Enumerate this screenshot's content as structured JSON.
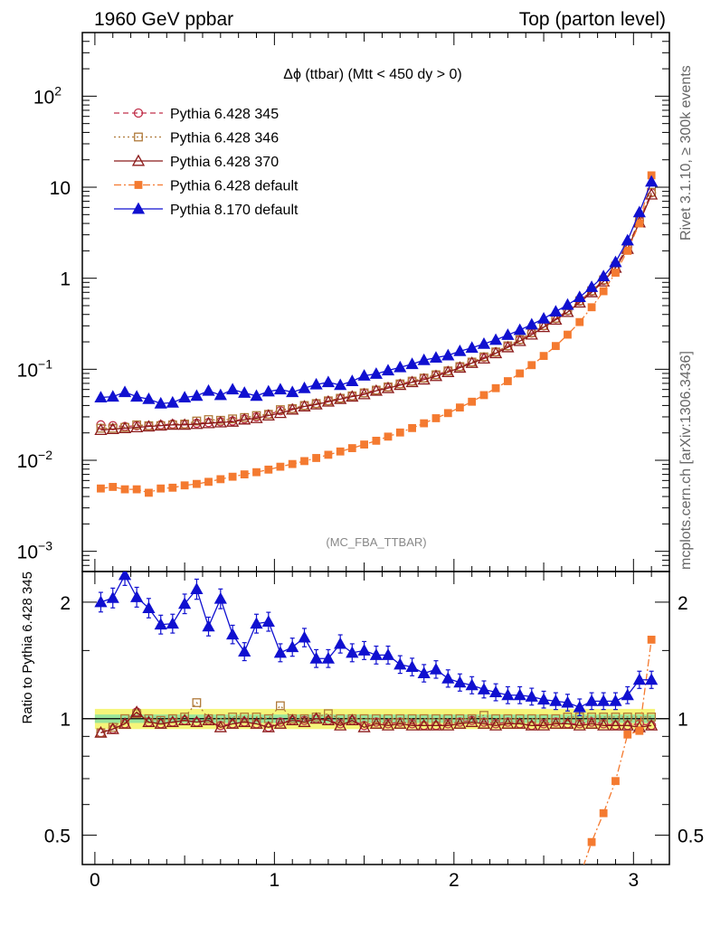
{
  "header": {
    "left": "1960 GeV ppbar",
    "right": "Top (parton level)"
  },
  "side_labels": {
    "rivet": "Rivet 3.1.10, ≥ 300k events",
    "mcplots": "mcplots.cern.ch [arXiv:1306.3436]"
  },
  "chart_data": {
    "type": "line",
    "title": "Δϕ (ttbar) (Mtt < 450 dy > 0)",
    "analysis_label": "(MC_FBA_TTBAR)",
    "upper": {
      "yscale": "log",
      "ylim": [
        0.0006,
        500
      ],
      "yticks": [
        {
          "value": 0.001,
          "label": "10",
          "sup": "−3"
        },
        {
          "value": 0.01,
          "label": "10",
          "sup": "−2"
        },
        {
          "value": 0.1,
          "label": "10",
          "sup": "−1"
        },
        {
          "value": 1,
          "label": "1",
          "sup": ""
        },
        {
          "value": 10,
          "label": "10",
          "sup": ""
        },
        {
          "value": 100,
          "label": "10",
          "sup": "2"
        }
      ]
    },
    "ratio": {
      "ylabel": "Ratio to Pythia 6.428 345",
      "yscale": "log",
      "ylim": [
        0.42,
        2.4
      ],
      "yticks": [
        {
          "value": 0.5,
          "label": "0.5"
        },
        {
          "value": 1,
          "label": "1"
        },
        {
          "value": 2,
          "label": "2"
        }
      ]
    },
    "xlim": [
      -0.07,
      3.2
    ],
    "xticks": [
      0,
      1,
      2,
      3
    ],
    "x": [
      0.033,
      0.1,
      0.167,
      0.233,
      0.3,
      0.367,
      0.433,
      0.5,
      0.567,
      0.633,
      0.7,
      0.767,
      0.833,
      0.9,
      0.967,
      1.033,
      1.1,
      1.167,
      1.233,
      1.3,
      1.367,
      1.433,
      1.5,
      1.567,
      1.633,
      1.7,
      1.767,
      1.833,
      1.9,
      1.967,
      2.033,
      2.1,
      2.167,
      2.233,
      2.3,
      2.367,
      2.433,
      2.5,
      2.567,
      2.633,
      2.7,
      2.767,
      2.833,
      2.9,
      2.967,
      3.033,
      3.1
    ],
    "series": [
      {
        "name": "Pythia 6.428 345",
        "color": "#c0304a",
        "marker": "circle-open",
        "dash": "6,4",
        "values": [
          0.0245,
          0.024,
          0.0235,
          0.024,
          0.024,
          0.0245,
          0.025,
          0.025,
          0.0255,
          0.026,
          0.0265,
          0.027,
          0.0285,
          0.03,
          0.032,
          0.035,
          0.037,
          0.04,
          0.042,
          0.045,
          0.048,
          0.051,
          0.055,
          0.059,
          0.064,
          0.069,
          0.074,
          0.08,
          0.087,
          0.096,
          0.107,
          0.12,
          0.135,
          0.155,
          0.18,
          0.21,
          0.25,
          0.3,
          0.36,
          0.44,
          0.56,
          0.72,
          0.95,
          1.35,
          2.2,
          4.3,
          8.7
        ],
        "ratio": [
          0.92,
          0.94,
          0.97,
          1.04,
          0.98,
          0.97,
          0.98,
          0.99,
          0.98,
          0.99,
          0.96,
          0.97,
          0.98,
          0.97,
          0.95,
          0.98,
          0.99,
          0.99,
          1.0,
          0.99,
          0.97,
          0.99,
          0.96,
          0.98,
          0.97,
          0.98,
          0.97,
          0.96,
          0.96,
          0.97,
          0.98,
          0.99,
          0.98,
          0.97,
          0.98,
          0.97,
          0.96,
          0.97,
          0.98,
          0.97,
          0.97,
          0.98,
          0.97,
          0.96,
          0.96,
          0.97,
          0.96
        ]
      },
      {
        "name": "Pythia 6.428 346",
        "color": "#b07a3a",
        "marker": "square-open",
        "dash": "2,3",
        "values": [
          0.0225,
          0.0225,
          0.023,
          0.0245,
          0.024,
          0.024,
          0.0245,
          0.025,
          0.027,
          0.028,
          0.0275,
          0.0285,
          0.0295,
          0.031,
          0.032,
          0.036,
          0.037,
          0.04,
          0.042,
          0.045,
          0.048,
          0.051,
          0.055,
          0.059,
          0.064,
          0.069,
          0.074,
          0.08,
          0.087,
          0.096,
          0.107,
          0.12,
          0.137,
          0.155,
          0.181,
          0.212,
          0.252,
          0.302,
          0.363,
          0.445,
          0.566,
          0.728,
          0.96,
          1.36,
          2.22,
          4.34,
          8.8
        ],
        "ratio": [
          0.92,
          0.95,
          1.0,
          1.03,
          1.0,
          0.99,
          1.0,
          1.01,
          1.1,
          1.0,
          1.0,
          1.01,
          1.01,
          1.01,
          1.0,
          1.08,
          1.0,
          1.0,
          1.01,
          1.03,
          1.0,
          1.0,
          1.0,
          1.0,
          1.0,
          1.0,
          1.0,
          1.0,
          1.0,
          1.0,
          1.0,
          1.0,
          1.02,
          1.0,
          1.0,
          1.0,
          1.0,
          1.0,
          1.0,
          1.01,
          1.01,
          1.01,
          1.01,
          1.01,
          1.01,
          1.01,
          1.01
        ]
      },
      {
        "name": "Pythia 6.428 370",
        "color": "#8b1a1a",
        "marker": "triangle-open",
        "dash": "",
        "values": [
          0.0215,
          0.022,
          0.0225,
          0.023,
          0.0235,
          0.024,
          0.0245,
          0.0245,
          0.025,
          0.0255,
          0.026,
          0.0265,
          0.028,
          0.029,
          0.031,
          0.033,
          0.036,
          0.039,
          0.041,
          0.044,
          0.047,
          0.05,
          0.053,
          0.058,
          0.062,
          0.067,
          0.072,
          0.077,
          0.084,
          0.093,
          0.104,
          0.117,
          0.131,
          0.15,
          0.174,
          0.204,
          0.24,
          0.29,
          0.35,
          0.425,
          0.54,
          0.7,
          0.92,
          1.3,
          2.1,
          4.1,
          8.3
        ],
        "ratio": [
          0.92,
          0.94,
          0.97,
          1.04,
          0.98,
          0.97,
          0.98,
          0.99,
          0.98,
          0.99,
          0.95,
          0.97,
          0.98,
          0.97,
          0.95,
          0.97,
          0.99,
          0.98,
          1.0,
          0.99,
          0.96,
          0.99,
          0.95,
          0.97,
          0.96,
          0.97,
          0.96,
          0.96,
          0.96,
          0.96,
          0.97,
          0.98,
          0.97,
          0.96,
          0.97,
          0.97,
          0.96,
          0.96,
          0.97,
          0.97,
          0.96,
          0.97,
          0.96,
          0.96,
          0.96,
          0.95,
          0.96
        ]
      },
      {
        "name": "Pythia 6.428 default",
        "color": "#f47a30",
        "marker": "square-filled",
        "dash": "8,3,2,3",
        "values": [
          0.0049,
          0.0051,
          0.0048,
          0.0048,
          0.0044,
          0.0049,
          0.005,
          0.0053,
          0.0055,
          0.0058,
          0.0062,
          0.0066,
          0.007,
          0.0074,
          0.0079,
          0.0085,
          0.0091,
          0.0098,
          0.0106,
          0.0115,
          0.0125,
          0.0136,
          0.0149,
          0.0164,
          0.0182,
          0.0202,
          0.0226,
          0.0255,
          0.029,
          0.033,
          0.038,
          0.044,
          0.052,
          0.062,
          0.074,
          0.09,
          0.111,
          0.14,
          0.18,
          0.24,
          0.33,
          0.48,
          0.72,
          1.15,
          2.0,
          4.0,
          13.5
        ],
        "ratio": [
          null,
          null,
          null,
          null,
          null,
          null,
          null,
          null,
          null,
          null,
          null,
          null,
          null,
          null,
          null,
          null,
          null,
          null,
          null,
          null,
          null,
          null,
          null,
          null,
          null,
          null,
          null,
          null,
          null,
          null,
          null,
          null,
          null,
          null,
          null,
          null,
          null,
          null,
          null,
          0.36,
          0.39,
          0.48,
          0.57,
          0.69,
          0.91,
          0.93,
          1.6
        ]
      },
      {
        "name": "Pythia 8.170 default",
        "color": "#1010d0",
        "marker": "triangle-filled",
        "dash": "",
        "values": [
          0.049,
          0.05,
          0.056,
          0.05,
          0.047,
          0.042,
          0.043,
          0.049,
          0.051,
          0.058,
          0.052,
          0.06,
          0.055,
          0.051,
          0.057,
          0.06,
          0.056,
          0.062,
          0.068,
          0.072,
          0.067,
          0.074,
          0.085,
          0.089,
          0.097,
          0.105,
          0.114,
          0.126,
          0.134,
          0.142,
          0.158,
          0.172,
          0.19,
          0.21,
          0.238,
          0.27,
          0.31,
          0.36,
          0.43,
          0.51,
          0.62,
          0.8,
          1.05,
          1.5,
          2.6,
          5.3,
          11.5
        ],
        "ratio": [
          2.0,
          2.05,
          2.35,
          2.06,
          1.93,
          1.75,
          1.76,
          1.98,
          2.16,
          1.73,
          2.04,
          1.65,
          1.49,
          1.76,
          1.78,
          1.48,
          1.53,
          1.62,
          1.43,
          1.43,
          1.56,
          1.48,
          1.5,
          1.46,
          1.46,
          1.38,
          1.36,
          1.31,
          1.34,
          1.27,
          1.24,
          1.22,
          1.19,
          1.17,
          1.15,
          1.15,
          1.14,
          1.12,
          1.11,
          1.1,
          1.07,
          1.11,
          1.11,
          1.11,
          1.15,
          1.26,
          1.26
        ]
      }
    ]
  }
}
